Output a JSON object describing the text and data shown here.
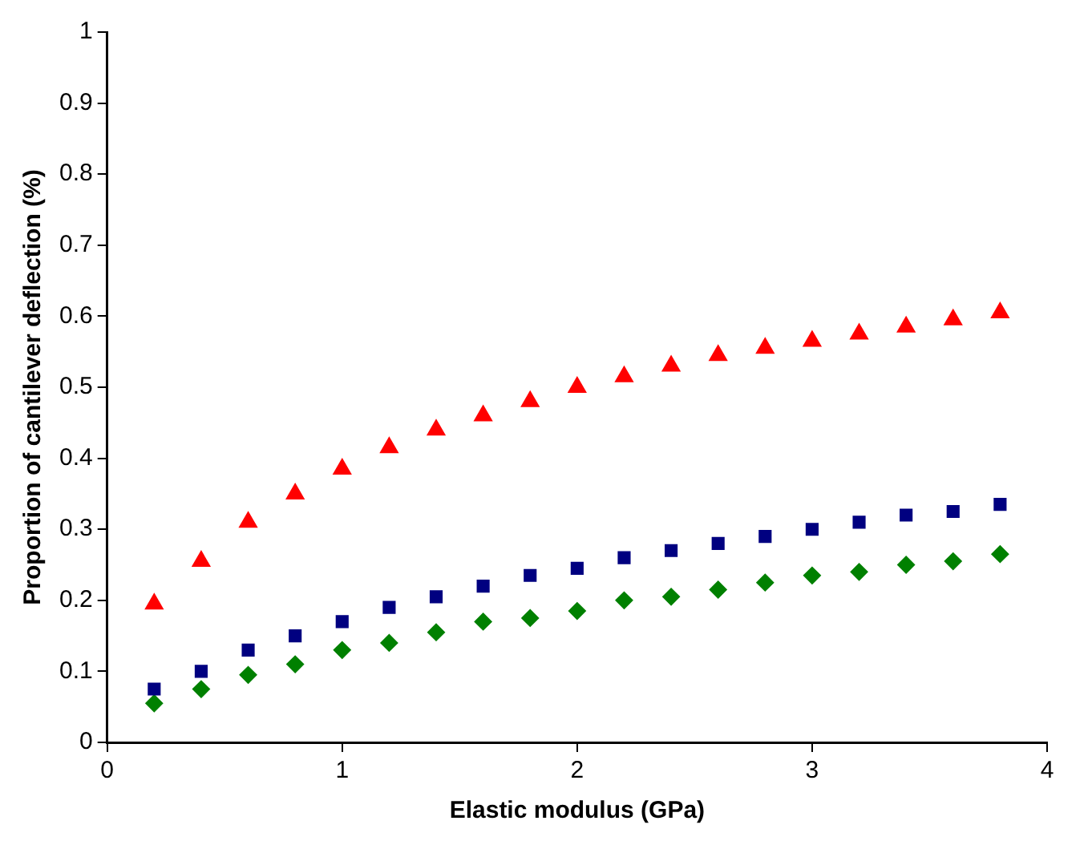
{
  "chart_data": {
    "type": "scatter",
    "xlabel": "Elastic modulus (GPa)",
    "ylabel": "Proportion of cantilever deflection (%)",
    "x": [
      0.2,
      0.4,
      0.6,
      0.8,
      1.0,
      1.2,
      1.4,
      1.6,
      1.8,
      2.0,
      2.2,
      2.4,
      2.6,
      2.8,
      3.0,
      3.2,
      3.4,
      3.6,
      3.8
    ],
    "series": [
      {
        "color": "#ff0000",
        "marker": "triangle",
        "values": [
          0.195,
          0.255,
          0.31,
          0.35,
          0.385,
          0.415,
          0.44,
          0.46,
          0.48,
          0.5,
          0.515,
          0.53,
          0.545,
          0.555,
          0.565,
          0.575,
          0.585,
          0.595,
          0.605
        ]
      },
      {
        "color": "#000080",
        "marker": "square",
        "values": [
          0.075,
          0.1,
          0.13,
          0.15,
          0.17,
          0.19,
          0.205,
          0.22,
          0.235,
          0.245,
          0.26,
          0.27,
          0.28,
          0.29,
          0.3,
          0.31,
          0.32,
          0.325,
          0.335
        ]
      },
      {
        "color": "#008000",
        "marker": "diamond",
        "values": [
          0.055,
          0.075,
          0.095,
          0.11,
          0.13,
          0.14,
          0.155,
          0.17,
          0.175,
          0.185,
          0.2,
          0.205,
          0.215,
          0.225,
          0.235,
          0.24,
          0.25,
          0.255,
          0.265
        ]
      }
    ],
    "xlim": [
      0,
      4
    ],
    "xticks": [
      0,
      1,
      2,
      3,
      4
    ],
    "ylim": [
      0,
      1
    ],
    "yticks": [
      0,
      0.1,
      0.2,
      0.3,
      0.4,
      0.5,
      0.6,
      0.7,
      0.8,
      0.9,
      1
    ],
    "grid": false,
    "legend": false
  }
}
